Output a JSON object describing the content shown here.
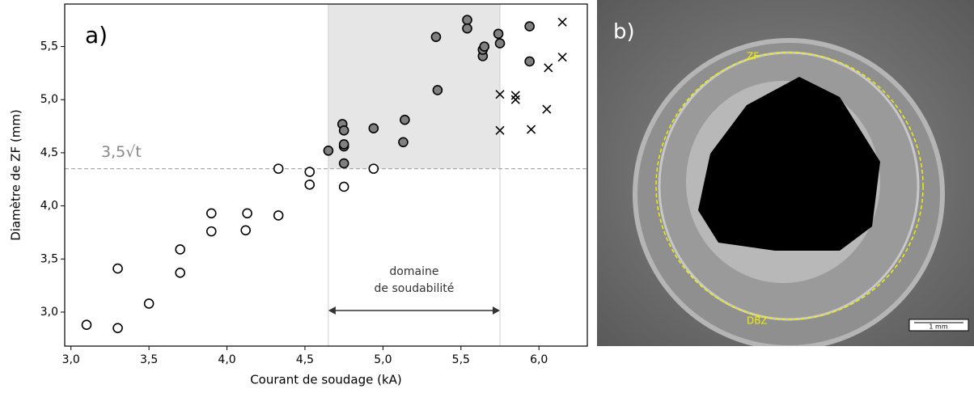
{
  "chart_data": {
    "type": "scatter",
    "panel_label": "a)",
    "x_label": "Courant de soudage (kA)",
    "y_label": "Diamètre de ZF (mm)",
    "xlim": [
      2.96,
      6.31
    ],
    "ylim": [
      2.68,
      5.9
    ],
    "xticks": [
      {
        "value": 3.0,
        "label": "3,0"
      },
      {
        "value": 3.5,
        "label": "3,5"
      },
      {
        "value": 4.0,
        "label": "4,0"
      },
      {
        "value": 4.5,
        "label": "4,5"
      },
      {
        "value": 5.0,
        "label": "5,0"
      },
      {
        "value": 5.5,
        "label": "5,5"
      },
      {
        "value": 6.0,
        "label": "6,0"
      }
    ],
    "yticks": [
      {
        "value": 3.0,
        "label": "3,0"
      },
      {
        "value": 3.5,
        "label": "3,5"
      },
      {
        "value": 4.0,
        "label": "4,0"
      },
      {
        "value": 4.5,
        "label": "4,5"
      },
      {
        "value": 5.0,
        "label": "5,0"
      },
      {
        "value": 5.5,
        "label": "5,5"
      }
    ],
    "threshold": {
      "value": 4.35,
      "label": "3,5√t",
      "color": "#aaaaaa"
    },
    "region": {
      "x": [
        4.65,
        5.75
      ],
      "color": "#e6e6e6",
      "label": [
        "domaine",
        "de soudabilité"
      ]
    },
    "series": [
      {
        "marker": "open",
        "color": "#000000",
        "x": [
          3.1,
          3.3,
          3.3,
          3.5,
          3.7,
          3.7,
          3.9,
          3.9,
          4.13,
          4.12,
          4.33,
          4.33,
          4.53,
          4.53,
          4.75,
          4.94
        ],
        "values": [
          2.88,
          2.85,
          3.41,
          3.08,
          3.59,
          3.37,
          3.93,
          3.76,
          3.93,
          3.77,
          4.35,
          3.91,
          4.32,
          4.2,
          4.18,
          4.35
        ]
      },
      {
        "marker": "filled",
        "color": "#808080",
        "x": [
          4.65,
          4.74,
          4.75,
          4.75,
          4.75,
          4.75,
          4.94,
          5.14,
          5.13,
          5.35,
          5.34,
          5.54,
          5.54,
          5.64,
          5.64,
          5.65,
          5.74,
          5.75,
          5.94,
          5.94
        ],
        "values": [
          4.52,
          4.77,
          4.71,
          4.56,
          4.4,
          4.58,
          4.73,
          4.81,
          4.6,
          5.09,
          5.59,
          5.75,
          5.67,
          5.41,
          5.47,
          5.5,
          5.62,
          5.53,
          5.69,
          5.36
        ]
      },
      {
        "marker": "cross",
        "color": "#000000",
        "x": [
          6.15,
          6.15,
          6.06,
          5.75,
          5.85,
          5.85,
          6.05,
          5.75,
          5.95
        ],
        "values": [
          5.73,
          5.4,
          5.3,
          5.05,
          5.04,
          5.0,
          4.91,
          4.71,
          4.72
        ]
      }
    ]
  },
  "photo": {
    "panel_label": "b)",
    "labels": [
      "ZF",
      "DBZ"
    ],
    "scale_bar": "1 mm"
  }
}
